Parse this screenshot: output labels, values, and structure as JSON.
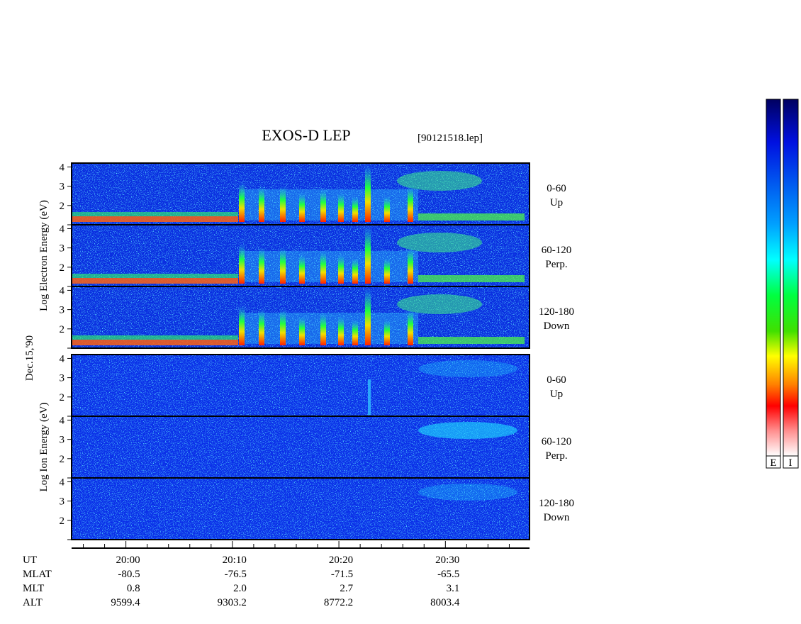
{
  "chart_data": {
    "type": "spectrogram",
    "title": "EXOS-D LEP",
    "subtitle": "[90121518.lep]",
    "date_label": "Dec.15,'90",
    "groups": [
      {
        "ylabel": "Log  Electron  Energy  (eV)",
        "panels": [
          {
            "label": "0-60",
            "sublabel": "Up"
          },
          {
            "label": "60-120",
            "sublabel": "Perp."
          },
          {
            "label": "120-180",
            "sublabel": "Down"
          }
        ]
      },
      {
        "ylabel": "Log  Ion  Energy  (eV)",
        "panels": [
          {
            "label": "0-60",
            "sublabel": "Up"
          },
          {
            "label": "60-120",
            "sublabel": "Perp."
          },
          {
            "label": "120-180",
            "sublabel": "Down"
          }
        ]
      }
    ],
    "ylim": [
      1,
      4.2
    ],
    "yticks": [
      2,
      3,
      4
    ],
    "xlim": [
      1194.9,
      1237.9
    ],
    "xticks": [
      {
        "value": 1200,
        "label": "20:00"
      },
      {
        "value": 1210,
        "label": "20:10"
      },
      {
        "value": 1220,
        "label": "20:20"
      },
      {
        "value": 1230,
        "label": "20:30"
      }
    ],
    "x_minor_ticks": [
      1196,
      1198,
      1202,
      1204,
      1206,
      1208,
      1212,
      1214,
      1216,
      1218,
      1222,
      1224,
      1226,
      1228,
      1232,
      1234,
      1236
    ],
    "rows": [
      {
        "name": "UT"
      },
      {
        "name": "MLAT",
        "values": [
          -80.5,
          -76.5,
          -71.5,
          -65.5
        ]
      },
      {
        "name": "MLT",
        "values": [
          0.8,
          2.0,
          2.7,
          3.1
        ],
        "value_labels": [
          "0.8",
          "2.0",
          "2.7",
          "3.1"
        ]
      },
      {
        "name": "ALT",
        "values": [
          9599.4,
          9303.2,
          8772.2,
          8003.4
        ]
      }
    ],
    "colorbar_labels": [
      "E",
      "I"
    ]
  }
}
